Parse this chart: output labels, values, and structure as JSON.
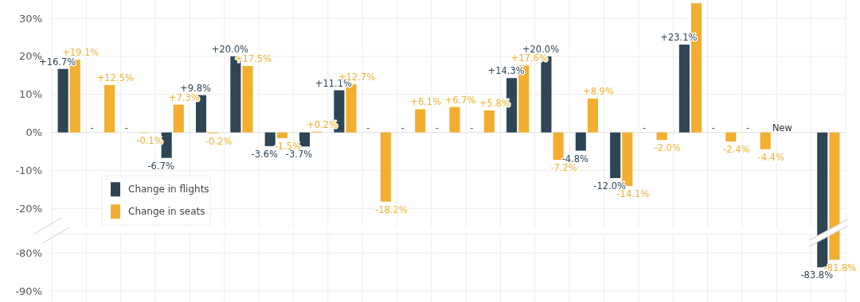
{
  "chart_data": [
    {
      "type": "bar",
      "categories": [
        null,
        null,
        null,
        null,
        null,
        null,
        null,
        null,
        null,
        null,
        null,
        null,
        null,
        null,
        null,
        null,
        null,
        null,
        null,
        null,
        null,
        null,
        null
      ],
      "series": [
        {
          "name": "Change in flights",
          "color": "#2e4556",
          "values": [
            16.7,
            null,
            null,
            -6.7,
            9.8,
            20.0,
            -3.6,
            -3.7,
            11.1,
            null,
            null,
            null,
            null,
            14.3,
            20.0,
            -4.8,
            -12.0,
            null,
            23.1,
            null,
            null,
            null,
            null
          ],
          "value_labels": [
            "+16.7%",
            "-",
            "-",
            "-6.7%",
            "+9.8%",
            "+20.0%",
            "-3.6%",
            "-3.7%",
            "+11.1%",
            "-",
            "-",
            "-",
            "-",
            "+14.3%",
            "+20.0%",
            "-4.8%",
            "-12.0%",
            "-",
            "+23.1%",
            "-",
            "-",
            "New",
            null
          ]
        },
        {
          "name": "Change in seats",
          "color": "#f3ae2f",
          "values": [
            19.1,
            12.5,
            -0.1,
            7.3,
            -0.2,
            17.5,
            -1.5,
            0.2,
            12.7,
            -18.2,
            6.1,
            6.7,
            5.8,
            17.6,
            -7.2,
            8.9,
            -14.1,
            -2.0,
            34,
            -2.4,
            -4.4,
            null,
            null
          ],
          "value_labels": [
            "+19.1%",
            "+12.5%",
            "-0.1%",
            "+7.3%",
            "-0.2%",
            "+17.5%",
            "-1.5%",
            "+0.2%",
            "+12.7%",
            "-18.2%",
            "+6.1%",
            "+6.7%",
            "+5.8%",
            "+17.6%",
            "-7.2%",
            "+8.9%",
            "-14.1%",
            "-2.0%",
            null,
            "-2.4%",
            "-4.4%",
            null,
            null
          ]
        }
      ],
      "ylim": [
        -25,
        34
      ],
      "yticks": [
        {
          "value": 30,
          "label": "30%"
        },
        {
          "value": 20,
          "label": "20%"
        },
        {
          "value": 10,
          "label": "10%"
        },
        {
          "value": 0,
          "label": "0%"
        },
        {
          "value": -10,
          "label": "-10%"
        },
        {
          "value": -20,
          "label": "-20%"
        }
      ],
      "grid": true,
      "tick_labels": "y",
      "legend": "bottom left"
    },
    {
      "type": "bar",
      "categories": [
        null,
        null,
        null,
        null,
        null,
        null,
        null,
        null,
        null,
        null,
        null,
        null,
        null,
        null,
        null,
        null,
        null,
        null,
        null,
        null,
        null,
        null,
        null
      ],
      "series": [
        {
          "color": "#2e4556",
          "values": [
            null,
            null,
            null,
            null,
            null,
            null,
            null,
            null,
            null,
            null,
            null,
            null,
            null,
            null,
            null,
            null,
            null,
            null,
            null,
            null,
            null,
            null,
            -83.8
          ],
          "value_labels": [
            null,
            null,
            null,
            null,
            null,
            null,
            null,
            null,
            null,
            null,
            null,
            null,
            null,
            null,
            null,
            null,
            null,
            null,
            null,
            null,
            null,
            null,
            "-83.8%"
          ]
        },
        {
          "color": "#f3ae2f",
          "values": [
            null,
            null,
            null,
            null,
            null,
            null,
            null,
            null,
            null,
            null,
            null,
            null,
            null,
            null,
            null,
            null,
            null,
            null,
            null,
            null,
            null,
            null,
            -81.8
          ],
          "value_labels": [
            null,
            null,
            null,
            null,
            null,
            null,
            null,
            null,
            null,
            null,
            null,
            null,
            null,
            null,
            null,
            null,
            null,
            null,
            null,
            null,
            null,
            null,
            "-81.8%"
          ]
        }
      ],
      "ylim": [
        -90,
        -75
      ],
      "yticks": [
        {
          "value": -80,
          "label": "-80%"
        },
        {
          "value": -90,
          "label": "-90%"
        }
      ],
      "grid": true,
      "tick_labels": "y"
    }
  ]
}
